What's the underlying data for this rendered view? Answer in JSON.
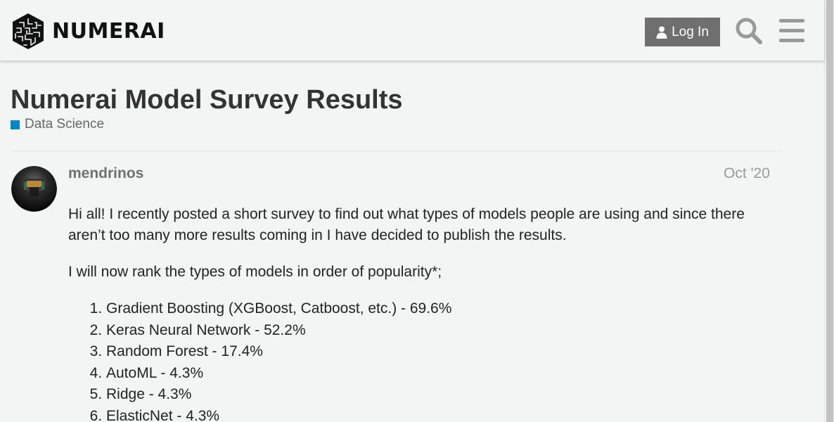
{
  "header": {
    "logo_text": "NUMERAI",
    "login_label": "Log In",
    "search_icon": "search-icon",
    "menu_icon": "hamburger-menu-icon"
  },
  "topic": {
    "title": "Numerai Model Survey Results",
    "category": {
      "label": "Data Science",
      "color": "#0088cc"
    }
  },
  "post": {
    "username": "mendrinos",
    "date": "Oct '20",
    "paragraphs": [
      "Hi all! I recently posted a short survey to find out what types of models people are using and since there aren’t too many more results coming in I have decided to publish the results.",
      "I will now rank the types of models in order of popularity*;"
    ],
    "ranking": [
      "Gradient Boosting (XGBoost, Catboost, etc.) - 69.6%",
      "Keras Neural Network - 52.2%",
      "Random Forest - 17.4%",
      "AutoML - 4.3%",
      "Ridge - 4.3%",
      "ElasticNet - 4.3%"
    ]
  },
  "colors": {
    "background": "#f3f5f5",
    "login_button": "#6f6f6f",
    "category_accent": "#0088cc",
    "title_text": "#333333"
  }
}
